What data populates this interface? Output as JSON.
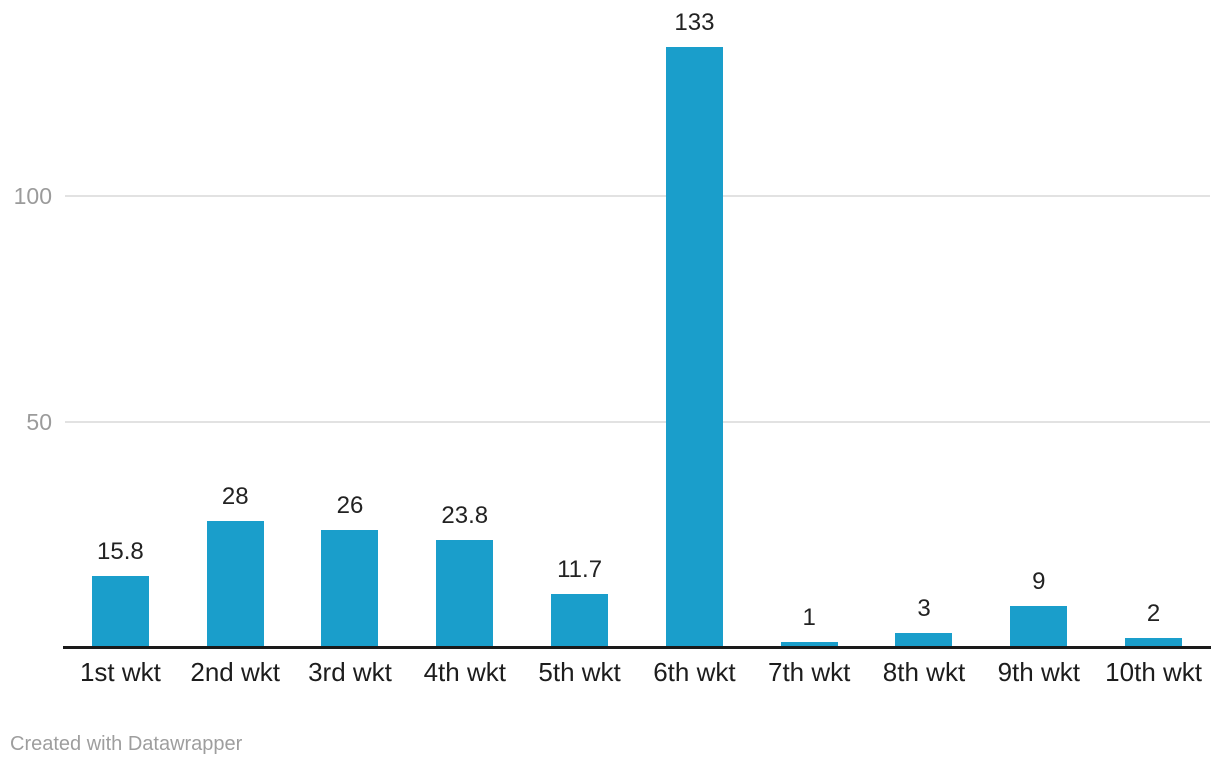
{
  "chart_data": {
    "type": "bar",
    "categories": [
      "1st wkt",
      "2nd wkt",
      "3rd wkt",
      "4th wkt",
      "5th wkt",
      "6th wkt",
      "7th wkt",
      "8th wkt",
      "9th wkt",
      "10th wkt"
    ],
    "values": [
      15.8,
      28,
      26,
      23.8,
      11.7,
      133,
      1,
      3,
      9,
      2
    ],
    "value_labels": [
      "15.8",
      "28",
      "26",
      "23.8",
      "11.7",
      "133",
      "1",
      "3",
      "9",
      "2"
    ],
    "yticks": [
      50,
      100
    ],
    "ytick_labels": [
      "50",
      "100"
    ],
    "ylim": [
      0,
      143
    ],
    "grid": true,
    "legend": "none",
    "colors": {
      "bar": "#1a9ecb",
      "axis": "#1a1a1a",
      "grid": "#e2e2e2",
      "tick_label": "#9b9b9b",
      "value_label": "#222222",
      "category_label": "#1d1d1d",
      "footer": "#9e9e9e"
    }
  },
  "footer": {
    "attribution": "Created with Datawrapper"
  }
}
